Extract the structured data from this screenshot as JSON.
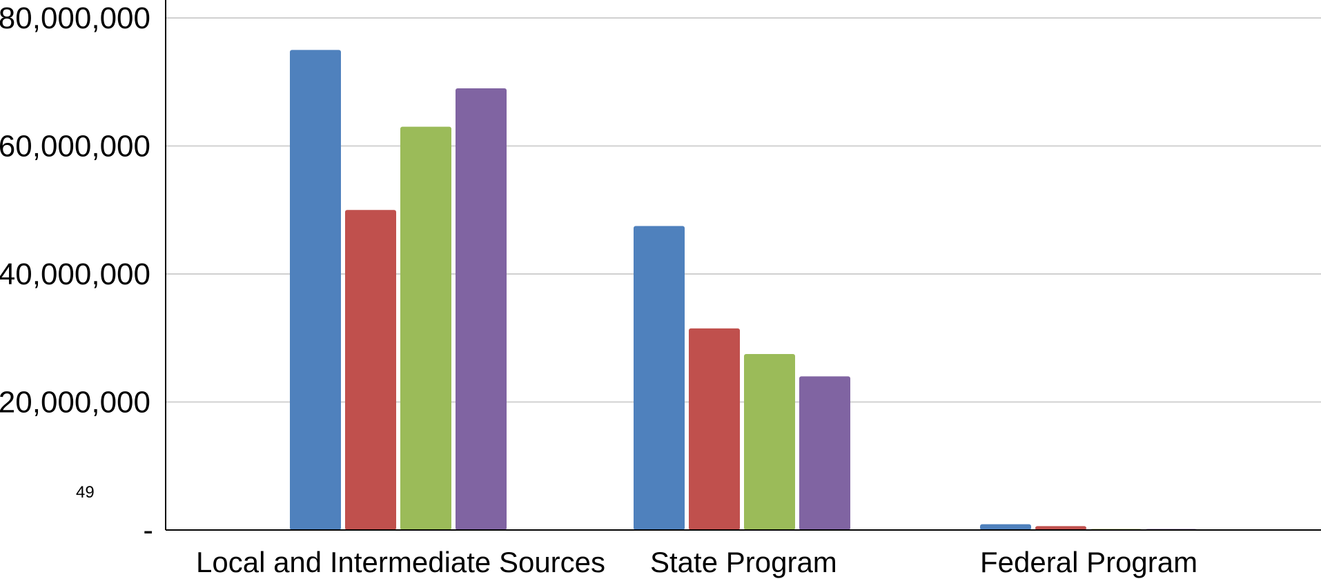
{
  "chart_data": {
    "type": "bar",
    "categories": [
      "Local and Intermediate Sources",
      "State Program",
      "Federal Program"
    ],
    "series": [
      {
        "values": [
          75000000,
          47500000,
          900000
        ],
        "color": "#4F81BD"
      },
      {
        "values": [
          50000000,
          31500000,
          600000
        ],
        "color": "#C0504D"
      },
      {
        "values": [
          63000000,
          27500000,
          150000
        ],
        "color": "#9BBB59"
      },
      {
        "values": [
          69000000,
          24000000,
          100000
        ],
        "color": "#8064A2"
      }
    ],
    "ylim": [
      0,
      80000000
    ],
    "yticks": [
      0,
      20000000,
      40000000,
      60000000,
      80000000
    ],
    "ytick_labels": [
      "-",
      "20,000,000",
      "40,000,000",
      "60,000,000",
      "80,000,000"
    ],
    "annotation": "49",
    "grid": true,
    "gridline_color": "#d0d0d0"
  }
}
